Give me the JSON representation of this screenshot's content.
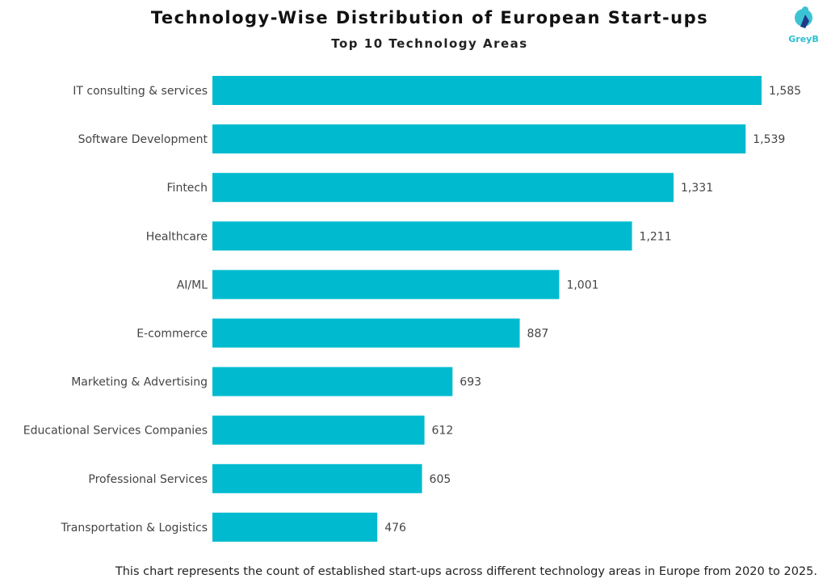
{
  "chart_data": {
    "type": "bar",
    "orientation": "horizontal",
    "title": "Technology-Wise Distribution of European Start-ups",
    "subtitle": "Top 10 Technology Areas",
    "categories": [
      "IT consulting & services",
      "Software Development",
      "Fintech",
      "Healthcare",
      "AI/ML",
      "E-commerce",
      "Marketing & Advertising",
      "Educational Services Companies",
      "Professional Services",
      "Transportation & Logistics"
    ],
    "values": [
      1585,
      1539,
      1331,
      1211,
      1001,
      887,
      693,
      612,
      605,
      476
    ],
    "value_labels": [
      "1,585",
      "1,539",
      "1,331",
      "1,211",
      "1,001",
      "887",
      "693",
      "612",
      "605",
      "476"
    ],
    "xlim": [
      0,
      1585
    ],
    "grid": false,
    "bar_color": "#00BBCF"
  },
  "logo": {
    "text": "GreyB"
  },
  "footnote": "This chart represents the count of established start-ups across different technology areas in Europe from 2020 to 2025."
}
